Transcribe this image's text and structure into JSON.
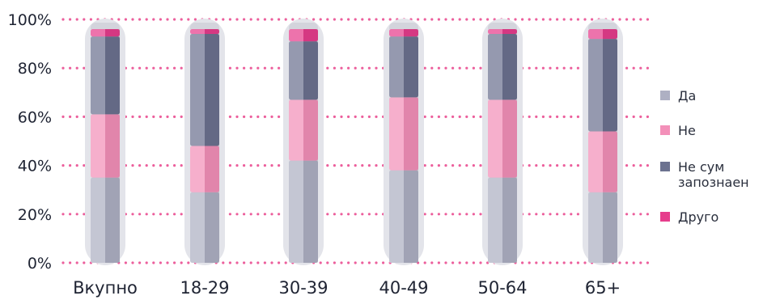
{
  "colors": {
    "grid": "#ec5f9c",
    "tube_outer": "#e3e4ea",
    "tube_inner": "#d3d4dc",
    "highlight": "rgba(255,255,255,0.28)",
    "shadow": "rgba(0,0,0,0.07)",
    "text": "#1f2433"
  },
  "chart_data": {
    "type": "bar",
    "stacked": true,
    "categories": [
      "Вкупно",
      "18-29",
      "30-39",
      "40-49",
      "50-64",
      "65+"
    ],
    "series": [
      {
        "name": "Да",
        "color": "#aeb0c3",
        "values": [
          35,
          29,
          42,
          38,
          35,
          29
        ]
      },
      {
        "name": "Не",
        "color": "#f390b9",
        "values": [
          26,
          19,
          25,
          30,
          32,
          25
        ]
      },
      {
        "name": "Не сум запознаен",
        "color": "#6c7290",
        "values": [
          32,
          46,
          24,
          25,
          27,
          38
        ]
      },
      {
        "name": "Друго",
        "color": "#e63d8c",
        "values": [
          3,
          2,
          5,
          3,
          2,
          4
        ]
      }
    ],
    "yticks": [
      "0%",
      "20%",
      "40%",
      "60%",
      "80%",
      "100%"
    ],
    "ylim": [
      0,
      100
    ],
    "grid": true,
    "legend": {
      "position": "right",
      "items": [
        "Да",
        "Не",
        "Не сум",
        "запознаен",
        "Друго"
      ]
    }
  }
}
